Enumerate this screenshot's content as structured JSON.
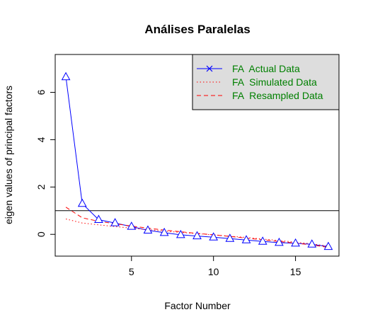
{
  "chart_data": {
    "type": "line",
    "title": "Análises Paralelas",
    "xlabel": "Factor Number",
    "ylabel": "eigen values of principal factors",
    "xlim": [
      0.35,
      17.65
    ],
    "ylim": [
      -0.92,
      7.6
    ],
    "x": [
      1,
      2,
      3,
      4,
      5,
      6,
      7,
      8,
      9,
      10,
      11,
      12,
      13,
      14,
      15,
      16,
      17
    ],
    "x_ticks": [
      5,
      10,
      15
    ],
    "y_ticks": [
      0,
      2,
      4,
      6
    ],
    "reference_line": {
      "y": 1
    },
    "series": [
      {
        "name": "FA  Actual Data",
        "color": "#0000ff",
        "line_style": "solid",
        "marker": "triangle",
        "values": [
          6.65,
          1.3,
          0.62,
          0.48,
          0.33,
          0.17,
          0.07,
          -0.02,
          -0.07,
          -0.12,
          -0.18,
          -0.24,
          -0.3,
          -0.35,
          -0.38,
          -0.42,
          -0.52
        ]
      },
      {
        "name": "FA  Simulated Data",
        "color": "#ff0000",
        "line_style": "dotted",
        "marker": "none",
        "values": [
          0.65,
          0.48,
          0.4,
          0.33,
          0.26,
          0.2,
          0.14,
          0.08,
          0.03,
          -0.02,
          -0.08,
          -0.13,
          -0.2,
          -0.26,
          -0.33,
          -0.4,
          -0.5
        ]
      },
      {
        "name": "FA  Resampled Data",
        "color": "#ff0000",
        "line_style": "dashed",
        "marker": "none",
        "values": [
          1.15,
          0.7,
          0.55,
          0.45,
          0.35,
          0.26,
          0.18,
          0.11,
          0.04,
          -0.02,
          -0.09,
          -0.16,
          -0.23,
          -0.3,
          -0.37,
          -0.45,
          -0.55
        ]
      }
    ],
    "legend": {
      "placement": "top-right",
      "background": "#dddddd",
      "text_color": "#008000"
    },
    "grid": false
  }
}
